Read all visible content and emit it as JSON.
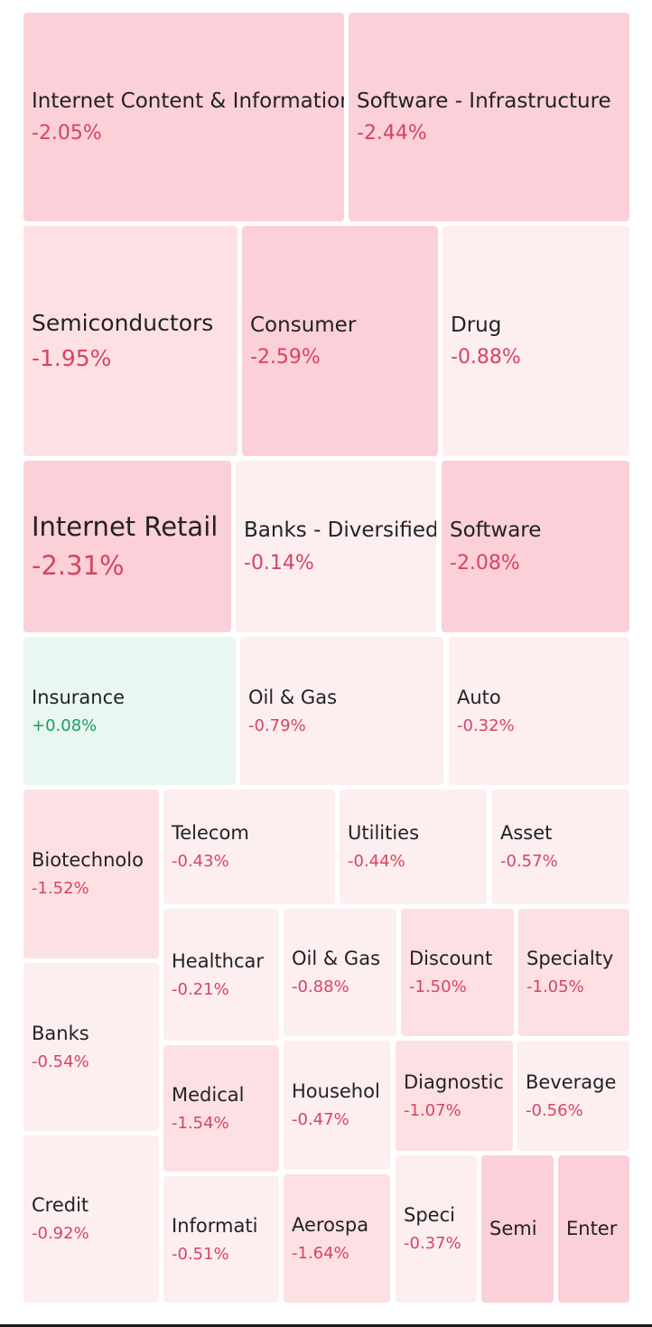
{
  "chart_data": {
    "type": "treemap",
    "colors": {
      "neg_light": "#fdeef0",
      "neg_mid": "#fde0e4",
      "neg_strong": "#fbd0d8",
      "pos_light": "#eaf7f1",
      "neg_text": "#d64560",
      "pos_text": "#1a9e63"
    },
    "tiles": [
      {
        "label": "Internet Content & Information",
        "change": "-2.05%",
        "value": -2.05
      },
      {
        "label": "Software - Infrastructure",
        "change": "-2.44%",
        "value": -2.44
      },
      {
        "label": "Semiconductors",
        "change": "-1.95%",
        "value": -1.95
      },
      {
        "label": "Consumer",
        "change": "-2.59%",
        "value": -2.59
      },
      {
        "label": "Drug",
        "change": "-0.88%",
        "value": -0.88
      },
      {
        "label": "Internet Retail",
        "change": "-2.31%",
        "value": -2.31
      },
      {
        "label": "Banks - Diversified",
        "change": "-0.14%",
        "value": -0.14
      },
      {
        "label": "Software",
        "change": "-2.08%",
        "value": -2.08
      },
      {
        "label": "Insurance",
        "change": "+0.08%",
        "value": 0.08
      },
      {
        "label": "Oil & Gas",
        "change": "-0.79%",
        "value": -0.79
      },
      {
        "label": "Auto",
        "change": "-0.32%",
        "value": -0.32
      },
      {
        "label": "Biotechnolo",
        "change": "-1.52%",
        "value": -1.52
      },
      {
        "label": "Telecom",
        "change": "-0.43%",
        "value": -0.43
      },
      {
        "label": "Utilities",
        "change": "-0.44%",
        "value": -0.44
      },
      {
        "label": "Asset",
        "change": "-0.57%",
        "value": -0.57
      },
      {
        "label": "Banks",
        "change": "-0.54%",
        "value": -0.54
      },
      {
        "label": "Healthcar",
        "change": "-0.21%",
        "value": -0.21
      },
      {
        "label": "Oil & Gas",
        "change": "-0.88%",
        "value": -0.88
      },
      {
        "label": "Discount",
        "change": "-1.50%",
        "value": -1.5
      },
      {
        "label": "Specialty",
        "change": "-1.05%",
        "value": -1.05
      },
      {
        "label": "Medical",
        "change": "-1.54%",
        "value": -1.54
      },
      {
        "label": "Househol",
        "change": "-0.47%",
        "value": -0.47
      },
      {
        "label": "Diagnostic",
        "change": "-1.07%",
        "value": -1.07
      },
      {
        "label": "Beverage",
        "change": "-0.56%",
        "value": -0.56
      },
      {
        "label": "Credit",
        "change": "-0.92%",
        "value": -0.92
      },
      {
        "label": "Informati",
        "change": "-0.51%",
        "value": -0.51
      },
      {
        "label": "Aerospa",
        "change": "-1.64%",
        "value": -1.64
      },
      {
        "label": "Speci",
        "change": "-0.37%",
        "value": -0.37
      },
      {
        "label": "Semi",
        "change": "",
        "value": null
      },
      {
        "label": "Enter",
        "change": "",
        "value": null
      }
    ]
  }
}
